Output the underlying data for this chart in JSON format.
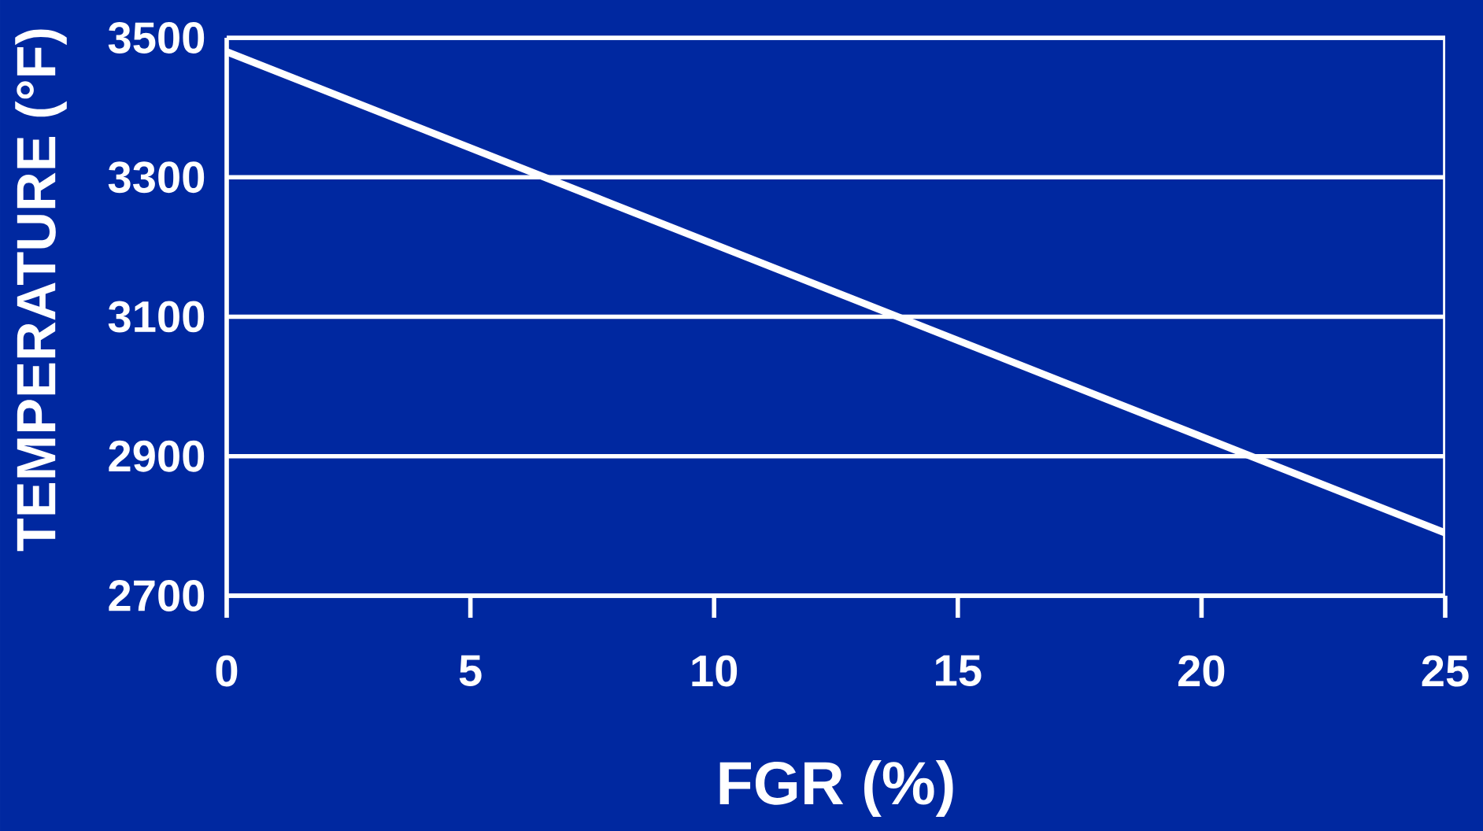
{
  "chart_data": {
    "type": "line",
    "xlabel": "FGR  (%)",
    "ylabel": "TEMPERATURE  (°F)",
    "x": [
      0,
      25
    ],
    "series": [
      {
        "color": "#ffffff",
        "values": [
          3480,
          2790
        ]
      }
    ],
    "xlim": [
      0,
      25
    ],
    "xticks": [
      0,
      5,
      10,
      15,
      20,
      25
    ],
    "ylim": [
      2700,
      3500
    ],
    "yticks": [
      2700,
      2900,
      3100,
      3300,
      3500
    ],
    "grid": "y",
    "marker": "none",
    "line_style": "solid"
  }
}
